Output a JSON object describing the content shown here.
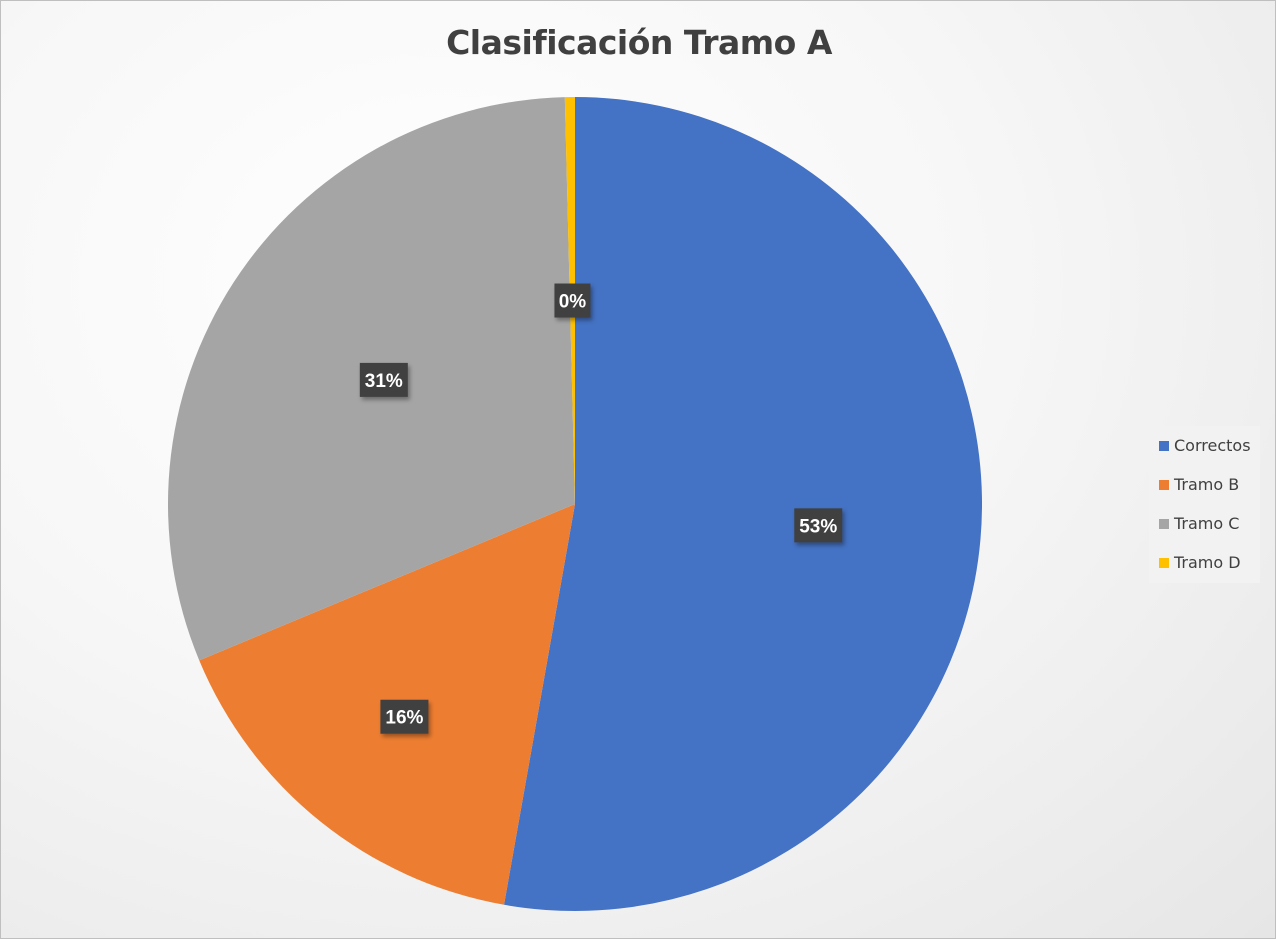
{
  "chart_data": {
    "type": "pie",
    "title": "Clasificación Tramo A",
    "categories": [
      "Correctos",
      "Tramo B",
      "Tramo C",
      "Tramo D"
    ],
    "values": [
      53,
      16,
      31,
      0.4
    ],
    "labels": [
      "53%",
      "16%",
      "31%",
      "0%"
    ],
    "colors": [
      "#4472C4",
      "#ED7D31",
      "#A5A5A5",
      "#FFC000"
    ],
    "legend_position": "right"
  }
}
